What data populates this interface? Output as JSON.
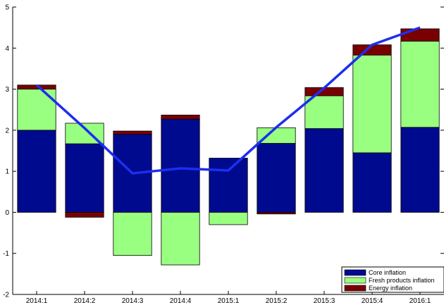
{
  "colors": {
    "core": "#000a8f",
    "fresh": "#99ff80",
    "energy": "#7a0000",
    "line": "#1c2ef0",
    "bar_edge": "#000000"
  },
  "chart_data": {
    "type": "bar",
    "stacked": true,
    "categories": [
      "2014:1",
      "2014:2",
      "2014:3",
      "2014:4",
      "2015:1",
      "2015:2",
      "2015:3",
      "2015:4",
      "2016:1"
    ],
    "series": [
      {
        "name": "Core inflation",
        "values": [
          2.0,
          1.67,
          1.9,
          2.27,
          1.32,
          1.68,
          2.04,
          1.45,
          2.07
        ]
      },
      {
        "name": "Fresh products inflation",
        "values": [
          1.0,
          0.5,
          -1.05,
          -1.28,
          -0.3,
          0.38,
          0.8,
          2.38,
          2.1
        ]
      },
      {
        "name": "Energy inflation",
        "values": [
          0.1,
          -0.12,
          0.08,
          0.1,
          0.0,
          -0.04,
          0.2,
          0.25,
          0.3
        ]
      }
    ],
    "line": {
      "values": [
        3.1,
        2.05,
        0.95,
        1.07,
        1.02,
        2.07,
        3.03,
        4.08,
        4.5
      ]
    },
    "ylim": [
      -2,
      5
    ],
    "yticks": [
      -2,
      -1,
      0,
      1,
      2,
      3,
      4,
      5
    ],
    "xlabel": "",
    "ylabel": "",
    "grid": false,
    "legend_position": "bottom-right"
  }
}
